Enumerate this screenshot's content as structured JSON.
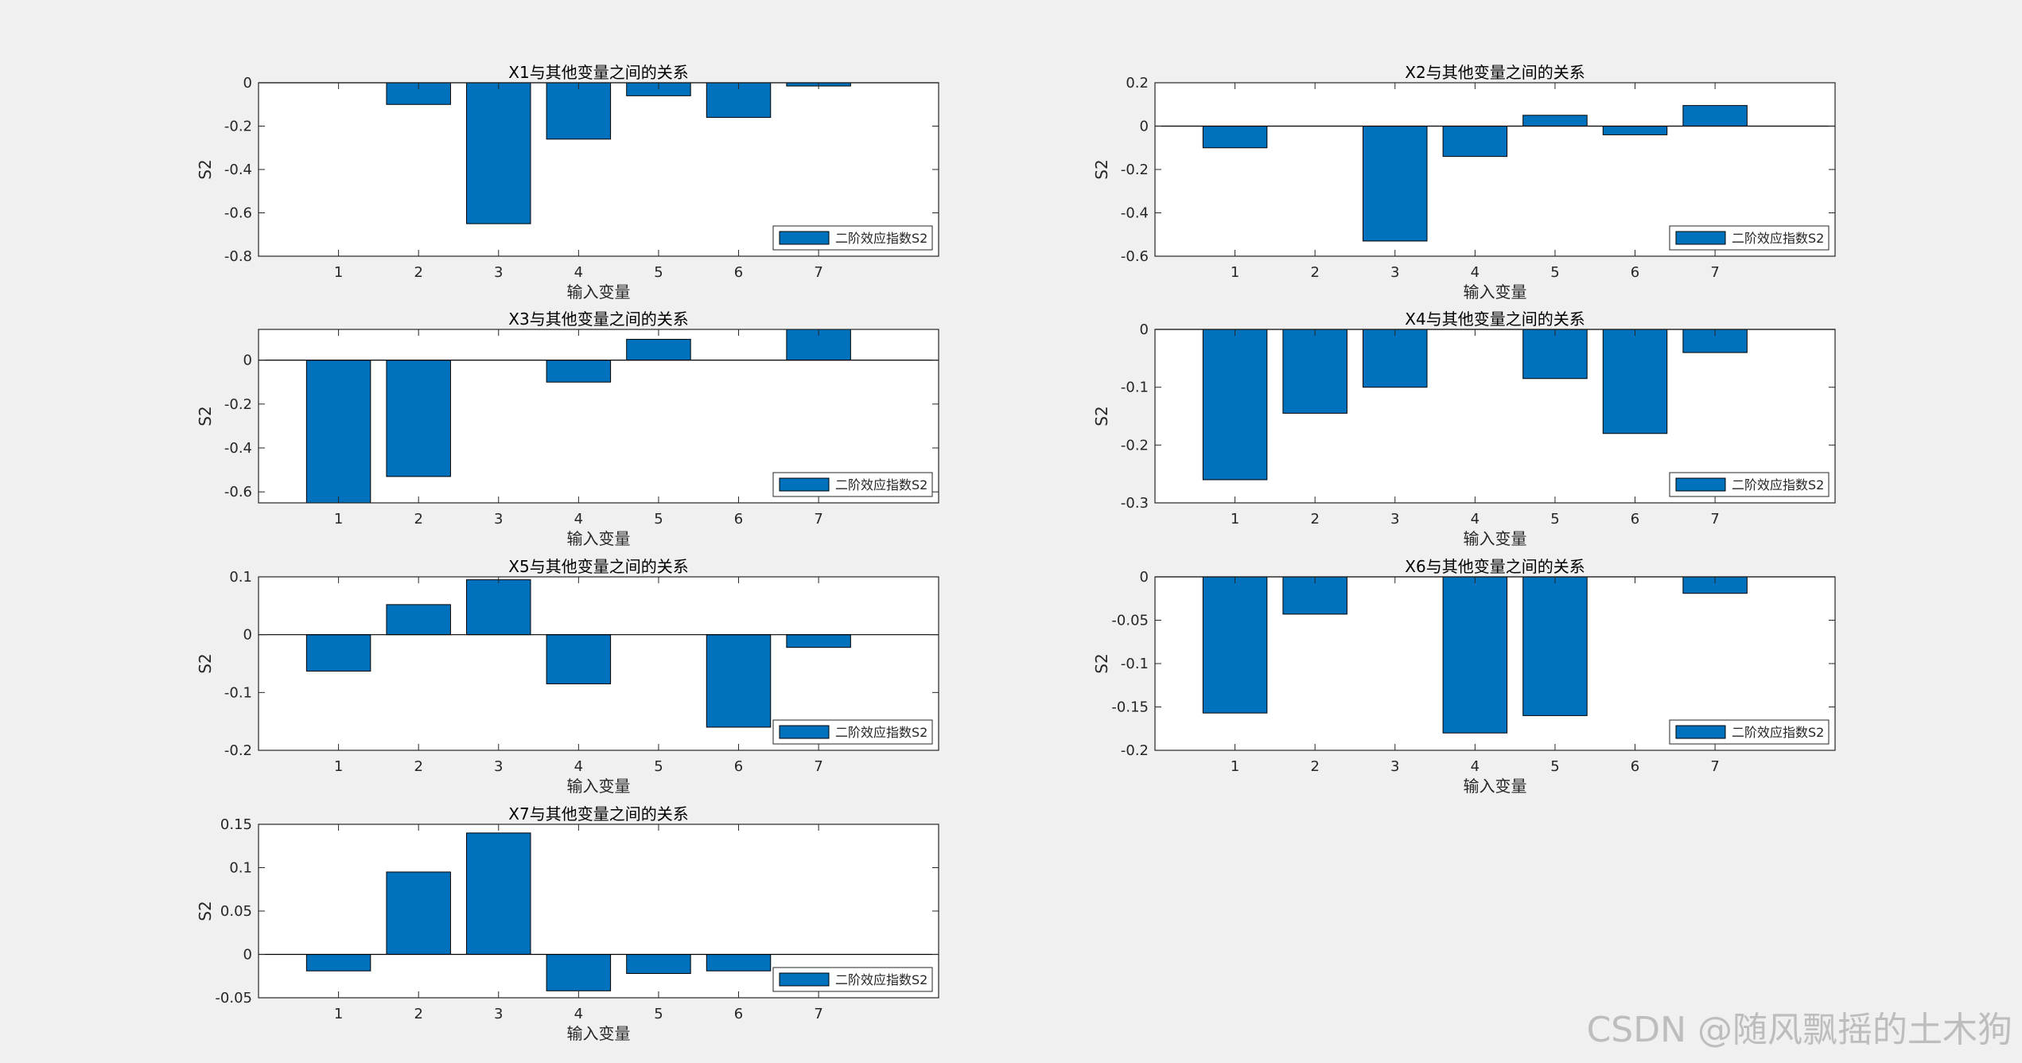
{
  "watermark": "CSDN @随风飘摇的土木狗",
  "style": {
    "bar_color": "#0072bd",
    "bar_edge": "#000000",
    "axes_bg": "#ffffff",
    "figure_bg": "#f0f0f0"
  },
  "chart_data": [
    {
      "type": "bar",
      "title": "X1与其他变量之间的关系",
      "xlabel": "输入变量",
      "ylabel": "S2",
      "legend": "二阶效应指数S2",
      "legend_position": "bottom-right",
      "categories": [
        1,
        2,
        3,
        4,
        5,
        6,
        7
      ],
      "values": [
        0,
        -0.1,
        -0.65,
        -0.26,
        -0.06,
        -0.16,
        -0.015
      ],
      "ylim": [
        -0.8,
        0
      ],
      "yticks": [
        0,
        -0.2,
        -0.4,
        -0.6,
        -0.8
      ],
      "ytick_labels": [
        "0",
        "-0.2",
        "-0.4",
        "-0.6",
        "-0.8"
      ]
    },
    {
      "type": "bar",
      "title": "X2与其他变量之间的关系",
      "xlabel": "输入变量",
      "ylabel": "S2",
      "legend": "二阶效应指数S2",
      "legend_position": "bottom-right",
      "categories": [
        1,
        2,
        3,
        4,
        5,
        6,
        7
      ],
      "values": [
        -0.1,
        0,
        -0.53,
        -0.14,
        0.05,
        -0.04,
        0.095
      ],
      "ylim": [
        -0.6,
        0.2
      ],
      "yticks": [
        0.2,
        0,
        -0.2,
        -0.4,
        -0.6
      ],
      "ytick_labels": [
        "0.2",
        "0",
        "-0.2",
        "-0.4",
        "-0.6"
      ]
    },
    {
      "type": "bar",
      "title": "X3与其他变量之间的关系",
      "xlabel": "输入变量",
      "ylabel": "S2",
      "legend": "二阶效应指数S2",
      "legend_position": "bottom-right",
      "categories": [
        1,
        2,
        3,
        4,
        5,
        6,
        7
      ],
      "values": [
        -0.65,
        -0.53,
        0,
        -0.1,
        0.095,
        0,
        0.14
      ],
      "ylim": [
        -0.65,
        0.14
      ],
      "yticks": [
        0,
        -0.2,
        -0.4,
        -0.6
      ],
      "ytick_labels": [
        "0",
        "-0.2",
        "-0.4",
        "-0.6"
      ]
    },
    {
      "type": "bar",
      "title": "X4与其他变量之间的关系",
      "xlabel": "输入变量",
      "ylabel": "S2",
      "legend": "二阶效应指数S2",
      "legend_position": "bottom-right",
      "categories": [
        1,
        2,
        3,
        4,
        5,
        6,
        7
      ],
      "values": [
        -0.26,
        -0.145,
        -0.1,
        0,
        -0.085,
        -0.18,
        -0.04
      ],
      "ylim": [
        -0.3,
        0
      ],
      "yticks": [
        0,
        -0.1,
        -0.2,
        -0.3
      ],
      "ytick_labels": [
        "0",
        "-0.1",
        "-0.2",
        "-0.3"
      ]
    },
    {
      "type": "bar",
      "title": "X5与其他变量之间的关系",
      "xlabel": "输入变量",
      "ylabel": "S2",
      "legend": "二阶效应指数S2",
      "legend_position": "bottom-right",
      "categories": [
        1,
        2,
        3,
        4,
        5,
        6,
        7
      ],
      "values": [
        -0.063,
        0.052,
        0.095,
        -0.085,
        0,
        -0.16,
        -0.022
      ],
      "ylim": [
        -0.2,
        0.1
      ],
      "yticks": [
        0.1,
        0,
        -0.1,
        -0.2
      ],
      "ytick_labels": [
        "0.1",
        "0",
        "-0.1",
        "-0.2"
      ]
    },
    {
      "type": "bar",
      "title": "X6与其他变量之间的关系",
      "xlabel": "输入变量",
      "ylabel": "S2",
      "legend": "二阶效应指数S2",
      "legend_position": "bottom-right",
      "categories": [
        1,
        2,
        3,
        4,
        5,
        6,
        7
      ],
      "values": [
        -0.157,
        -0.043,
        0,
        -0.18,
        -0.16,
        0,
        -0.019
      ],
      "ylim": [
        -0.2,
        0
      ],
      "yticks": [
        0,
        -0.05,
        -0.1,
        -0.15,
        -0.2
      ],
      "ytick_labels": [
        "0",
        "-0.05",
        "-0.1",
        "-0.15",
        "-0.2"
      ]
    },
    {
      "type": "bar",
      "title": "X7与其他变量之间的关系",
      "xlabel": "输入变量",
      "ylabel": "S2",
      "legend": "二阶效应指数S2",
      "legend_position": "bottom-right",
      "categories": [
        1,
        2,
        3,
        4,
        5,
        6,
        7
      ],
      "values": [
        -0.019,
        0.095,
        0.14,
        -0.042,
        -0.022,
        -0.019,
        0
      ],
      "ylim": [
        -0.05,
        0.15
      ],
      "yticks": [
        0.15,
        0.1,
        0.05,
        0,
        -0.05
      ],
      "ytick_labels": [
        "0.15",
        "0.1",
        "0.05",
        "0",
        "-0.05"
      ]
    }
  ]
}
